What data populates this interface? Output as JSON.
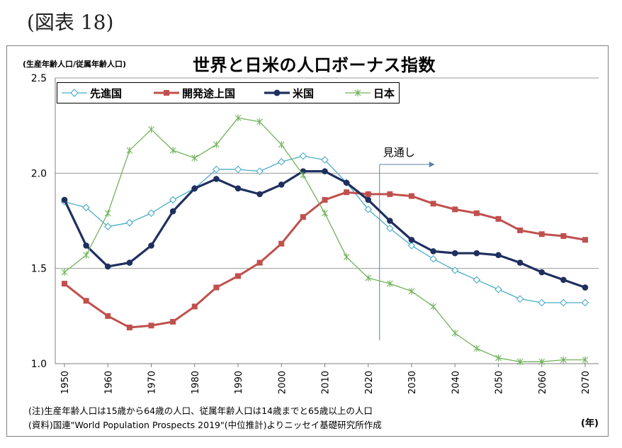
{
  "figure_label": "(図表 18)",
  "chart_data": {
    "type": "line",
    "title": "世界と日米の人口ボーナス指数",
    "ylabel": "(生産年齢人口/従属年齢人口)",
    "xlabel": "(年)",
    "ylim": [
      1.0,
      2.5
    ],
    "yticks": [
      "1.0",
      "1.5",
      "2.0",
      "2.5"
    ],
    "x": [
      1950,
      1955,
      1960,
      1965,
      1970,
      1975,
      1980,
      1985,
      1990,
      1995,
      2000,
      2005,
      2010,
      2015,
      2020,
      2025,
      2030,
      2035,
      2040,
      2045,
      2050,
      2055,
      2060,
      2065,
      2070
    ],
    "xtick_labels": [
      "1950",
      "1960",
      "1970",
      "1980",
      "1990",
      "2000",
      "2010",
      "2020",
      "2030",
      "2040",
      "2050",
      "2060",
      "2070"
    ],
    "grid": "horizontal",
    "legend_position": "top",
    "series": [
      {
        "name": "先進国",
        "color": "#4bacc6",
        "marker": "diamond-open",
        "values": [
          1.85,
          1.82,
          1.72,
          1.74,
          1.79,
          1.86,
          1.92,
          2.02,
          2.02,
          2.01,
          2.06,
          2.09,
          2.07,
          1.95,
          1.81,
          1.71,
          1.62,
          1.55,
          1.49,
          1.44,
          1.39,
          1.34,
          1.32,
          1.32,
          1.32
        ]
      },
      {
        "name": "開発途上国",
        "color": "#c0504d",
        "marker": "square",
        "values": [
          1.42,
          1.33,
          1.25,
          1.19,
          1.2,
          1.22,
          1.3,
          1.4,
          1.46,
          1.53,
          1.63,
          1.77,
          1.86,
          1.9,
          1.89,
          1.89,
          1.88,
          1.84,
          1.81,
          1.79,
          1.76,
          1.7,
          1.68,
          1.67,
          1.65
        ]
      },
      {
        "name": "米国",
        "color": "#1f2f5f",
        "marker": "circle",
        "values": [
          1.86,
          1.62,
          1.51,
          1.53,
          1.62,
          1.8,
          1.92,
          1.97,
          1.92,
          1.89,
          1.94,
          2.01,
          2.01,
          1.95,
          1.86,
          1.75,
          1.65,
          1.59,
          1.58,
          1.58,
          1.57,
          1.53,
          1.48,
          1.44,
          1.4
        ]
      },
      {
        "name": "日本",
        "color": "#70b35a",
        "marker": "star",
        "values": [
          1.48,
          1.57,
          1.79,
          2.12,
          2.23,
          2.12,
          2.08,
          2.15,
          2.29,
          2.27,
          2.15,
          1.99,
          1.79,
          1.56,
          1.45,
          1.42,
          1.38,
          1.3,
          1.16,
          1.08,
          1.03,
          1.01,
          1.01,
          1.02,
          1.02
        ]
      }
    ],
    "annotations": [
      {
        "text": "見通し",
        "x": 2020
      }
    ]
  },
  "notes": [
    "(注)生産年齢人口は15歳から64歳の人口、従属年齢人口は14歳までと65歳以上の人口",
    "(資料)国連\"World Population Prospects 2019\"(中位推計)よりニッセイ基礎研究所作成"
  ]
}
